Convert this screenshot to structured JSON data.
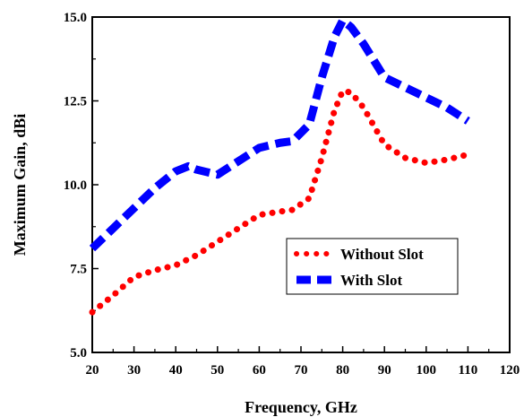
{
  "chart_data": {
    "type": "line",
    "xlabel": "Frequency, GHz",
    "ylabel": "Maximum Gain, dBi",
    "xlim": [
      20,
      120
    ],
    "ylim": [
      5.0,
      15.0
    ],
    "x_ticks": [
      "20",
      "30",
      "40",
      "50",
      "60",
      "70",
      "80",
      "90",
      "100",
      "110",
      "120"
    ],
    "y_ticks": [
      "5.0",
      "7.5",
      "10.0",
      "12.5",
      "15.0"
    ],
    "legend_position": "center-right",
    "series": [
      {
        "name": "Without Slot",
        "color": "#ff0000",
        "style": "dotted",
        "x": [
          20,
          25,
          30,
          35,
          40,
          45,
          50,
          55,
          60,
          65,
          68,
          72,
          75,
          78,
          80,
          82,
          85,
          90,
          95,
          100,
          105,
          110
        ],
        "y": [
          6.2,
          6.7,
          7.25,
          7.45,
          7.6,
          7.9,
          8.3,
          8.7,
          9.1,
          9.2,
          9.25,
          9.6,
          10.8,
          12.2,
          12.8,
          12.75,
          12.3,
          11.2,
          10.8,
          10.65,
          10.75,
          10.9
        ]
      },
      {
        "name": "With Slot",
        "color": "#0000ff",
        "style": "dashed",
        "x": [
          20,
          25,
          30,
          35,
          40,
          43,
          45,
          50,
          55,
          60,
          65,
          68,
          72,
          75,
          78,
          80,
          82,
          85,
          90,
          95,
          100,
          105,
          110
        ],
        "y": [
          8.1,
          8.7,
          9.3,
          9.9,
          10.4,
          10.55,
          10.45,
          10.3,
          10.7,
          11.1,
          11.25,
          11.3,
          11.8,
          13.2,
          14.4,
          14.9,
          14.7,
          14.2,
          13.2,
          12.9,
          12.6,
          12.3,
          11.9
        ]
      }
    ]
  }
}
